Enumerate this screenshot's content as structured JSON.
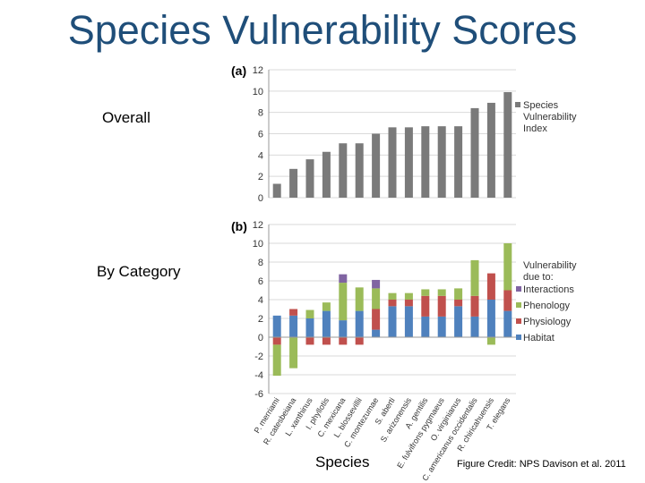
{
  "title": "Species Vulnerability Scores",
  "labels": {
    "overall": "Overall",
    "by_category": "By Category",
    "xaxis": "Species"
  },
  "credit": "Figure Credit: NPS Davison et al. 2011",
  "colors": {
    "title": "#1f4e79",
    "index": "#7a7a7a",
    "habitat": "#4f81bd",
    "physiology": "#c0504d",
    "phenology": "#9bbb59",
    "interactions": "#8064a2"
  },
  "chart_data": [
    {
      "type": "bar",
      "panel": "(a)",
      "categories": [
        "P. merriami",
        "R. catesbeiana",
        "L. xanthinus",
        "I. phyllotis",
        "C. mexicana",
        "L. blossevillii",
        "C. montezumae",
        "S. aberti",
        "S. arizonensis",
        "A. gentilis",
        "E. fulvifrons pygmaeus",
        "O. virginianus",
        "C. americanus occidentalis",
        "R. chiricahuensis",
        "T. elegans"
      ],
      "series": [
        {
          "name": "Species Vulnerability Index",
          "values": [
            1.3,
            2.7,
            3.6,
            4.3,
            5.1,
            5.1,
            6.0,
            6.6,
            6.6,
            6.7,
            6.7,
            6.7,
            8.4,
            8.9,
            9.9
          ]
        }
      ],
      "legend": [
        "Species",
        "Vulnerability",
        "Index"
      ],
      "ylim": [
        0,
        12
      ],
      "yticks": [
        0,
        2,
        4,
        6,
        8,
        10,
        12
      ],
      "grid": true,
      "legend_position": "right"
    },
    {
      "type": "stacked-bar",
      "panel": "(b)",
      "categories": [
        "P. merriami",
        "R. catesbeiana",
        "L. xanthinus",
        "I. phyllotis",
        "C. mexicana",
        "L. blossevillii",
        "C. montezumae",
        "S. aberti",
        "S. arizonensis",
        "A. gentilis",
        "E. fulvifrons pygmaeus",
        "O. virginianus",
        "C. americanus occidentalis",
        "R. chiricahuensis",
        "T. elegans"
      ],
      "series": [
        {
          "name": "Habitat",
          "values": [
            2.3,
            2.3,
            2.0,
            2.8,
            1.8,
            2.8,
            0.8,
            3.3,
            3.3,
            2.2,
            2.2,
            3.3,
            2.2,
            4.0,
            2.8
          ]
        },
        {
          "name": "Physiology",
          "values": [
            -0.8,
            0.7,
            -0.8,
            -0.8,
            -0.8,
            -0.8,
            2.2,
            0.7,
            0.7,
            2.2,
            2.2,
            0.7,
            2.2,
            2.8,
            2.2
          ]
        },
        {
          "name": "Phenology",
          "values": [
            -3.3,
            -3.3,
            0.9,
            0.9,
            4.0,
            2.5,
            2.2,
            0.7,
            0.7,
            0.7,
            0.7,
            1.2,
            3.8,
            -0.8,
            5.0
          ]
        },
        {
          "name": "Interactions",
          "values": [
            0,
            0,
            0,
            0,
            0.9,
            0,
            0.9,
            0,
            0,
            0,
            0,
            0,
            0,
            0,
            0
          ]
        }
      ],
      "legend_title": [
        "Vulnerability",
        "due to:"
      ],
      "ylim": [
        -6,
        12
      ],
      "yticks": [
        -6,
        -4,
        -2,
        0,
        2,
        4,
        6,
        8,
        10,
        12
      ],
      "grid": true,
      "legend_position": "right"
    }
  ]
}
